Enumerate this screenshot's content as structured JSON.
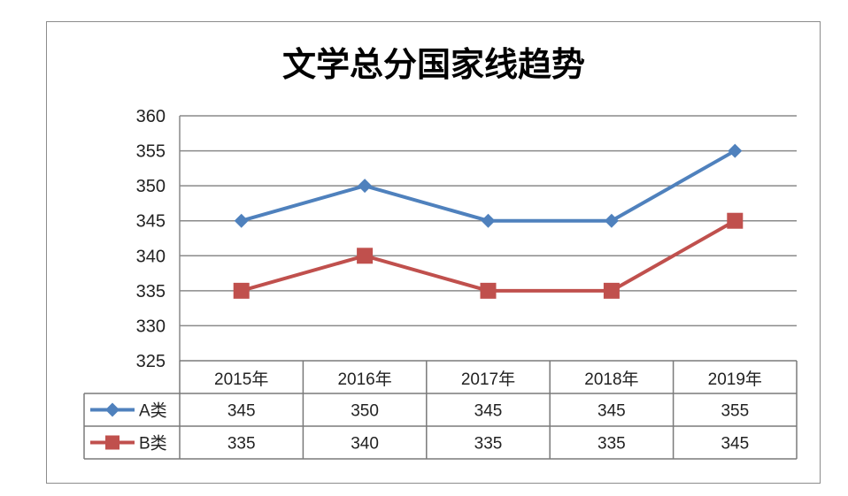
{
  "chart_data": {
    "type": "line",
    "title": "文学总分国家线趋势",
    "categories": [
      "2015年",
      "2016年",
      "2017年",
      "2018年",
      "2019年"
    ],
    "series": [
      {
        "name": "A类",
        "values": [
          345,
          350,
          345,
          345,
          355
        ],
        "color": "#4f81bd",
        "marker": "diamond"
      },
      {
        "name": "B类",
        "values": [
          335,
          340,
          335,
          335,
          345
        ],
        "color": "#c0504d",
        "marker": "square"
      }
    ],
    "ylim": [
      325,
      360
    ],
    "yticks": [
      325,
      330,
      335,
      340,
      345,
      350,
      355,
      360
    ],
    "grid": true,
    "legend": "data-table",
    "xlabel": "",
    "ylabel": ""
  }
}
